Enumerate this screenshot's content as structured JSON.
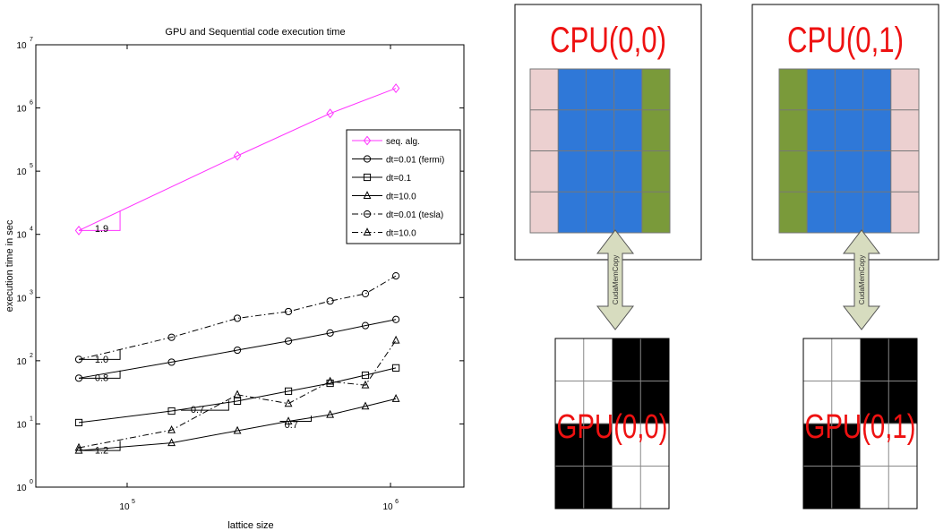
{
  "chart_data": {
    "type": "line",
    "title": "GPU and Sequential code execution time",
    "xlabel": "lattice size",
    "ylabel": "execution time in sec",
    "x_scale": "log",
    "y_scale": "log",
    "xlim": [
      45000,
      1900000
    ],
    "ylim": [
      1,
      10000000
    ],
    "x_ticks": [
      {
        "value": 100000,
        "base": "10",
        "exp": "5"
      },
      {
        "value": 1000000,
        "base": "10",
        "exp": "6"
      }
    ],
    "y_ticks": [
      {
        "value": 1,
        "base": "10",
        "exp": "0"
      },
      {
        "value": 10,
        "base": "10",
        "exp": "1"
      },
      {
        "value": 100,
        "base": "10",
        "exp": "2"
      },
      {
        "value": 1000,
        "base": "10",
        "exp": "3"
      },
      {
        "value": 10000,
        "base": "10",
        "exp": "4"
      },
      {
        "value": 100000,
        "base": "10",
        "exp": "5"
      },
      {
        "value": 1000000,
        "base": "10",
        "exp": "6"
      },
      {
        "value": 10000000,
        "base": "10",
        "exp": "7"
      }
    ],
    "grid": false,
    "legend_position": "right",
    "series": [
      {
        "name": "seq. alg.",
        "color": "#ff33ff",
        "dash": "solid",
        "marker": "diamond",
        "x": [
          65536,
          262144,
          589824,
          1048576
        ],
        "y": [
          11500,
          175000,
          820000,
          2050000
        ]
      },
      {
        "name": "dt=0.01 (fermi)",
        "color": "#000000",
        "dash": "solid",
        "marker": "circle",
        "x": [
          65536,
          147456,
          262144,
          409600,
          589824,
          802816,
          1048576
        ],
        "y": [
          53,
          95,
          147,
          205,
          275,
          360,
          450
        ]
      },
      {
        "name": "dt=0.1",
        "color": "#000000",
        "dash": "solid",
        "marker": "square",
        "x": [
          65536,
          147456,
          262144,
          409600,
          589824,
          802816,
          1048576
        ],
        "y": [
          10.5,
          16,
          23,
          33,
          44,
          59,
          77
        ]
      },
      {
        "name": "dt=10.0",
        "color": "#000000",
        "dash": "solid",
        "marker": "triangle",
        "x": [
          65536,
          147456,
          262144,
          409600,
          589824,
          802816,
          1048576
        ],
        "y": [
          3.8,
          5,
          7.8,
          11,
          14,
          19,
          25
        ]
      },
      {
        "name": "dt=0.01 (tesla)",
        "color": "#000000",
        "dash": "dashdot",
        "marker": "circle",
        "x": [
          65536,
          147456,
          262144,
          409600,
          589824,
          802816,
          1048576
        ],
        "y": [
          105,
          235,
          470,
          600,
          880,
          1150,
          2200
        ]
      },
      {
        "name": "dt=10.0",
        "color": "#000000",
        "dash": "dashdot",
        "marker": "triangle",
        "x": [
          65536,
          147456,
          262144,
          409600,
          589824,
          802816,
          1048576
        ],
        "y": [
          4.2,
          8,
          29,
          21,
          47,
          41,
          210
        ]
      }
    ],
    "slope_annotations": [
      {
        "label": "1.9",
        "x1": 65536,
        "x2": 94000,
        "y1": 11500,
        "y2": 23700,
        "label_x": 80000,
        "label_y": 11000
      },
      {
        "label": "1.0",
        "x1": 65536,
        "x2": 94000,
        "y1": 105,
        "y2": 150,
        "label_x": 80000,
        "label_y": 93
      },
      {
        "label": "0.8",
        "x1": 65536,
        "x2": 94000,
        "y1": 53,
        "y2": 70,
        "label_x": 80000,
        "label_y": 48
      },
      {
        "label": "0.7",
        "x1": 160000,
        "x2": 243000,
        "y1": 16.5,
        "y2": 23.5,
        "label_x": 185000,
        "label_y": 15
      },
      {
        "label": "0.7",
        "x1": 380000,
        "x2": 500000,
        "y1": 11,
        "y2": 13.5,
        "label_x": 420000,
        "label_y": 8.6
      },
      {
        "label": "1.2",
        "x1": 65536,
        "x2": 94000,
        "y1": 3.8,
        "y2": 5.4,
        "label_x": 80000,
        "label_y": 3.4
      }
    ]
  },
  "diagram": {
    "cpu_blocks": [
      {
        "label": "CPU(0,0)",
        "halo_left_color": "#ecd0d0",
        "halo_right_color": "#7a9a3a"
      },
      {
        "label": "CPU(0,1)",
        "halo_left_color": "#7a9a3a",
        "halo_right_color": "#ecd0d0"
      }
    ],
    "arrow_label": "CudaMemCopy",
    "gpu_blocks": [
      {
        "label": "GPU(0,0)",
        "cells": [
          [
            0,
            0,
            1,
            1
          ],
          [
            0,
            0,
            1,
            1
          ],
          [
            1,
            1,
            0,
            0
          ],
          [
            1,
            1,
            0,
            0
          ]
        ]
      },
      {
        "label": "GPU(0,1)",
        "cells": [
          [
            0,
            0,
            1,
            1
          ],
          [
            0,
            0,
            1,
            1
          ],
          [
            1,
            1,
            0,
            0
          ],
          [
            1,
            1,
            0,
            0
          ]
        ]
      }
    ],
    "colors": {
      "label_red": "#ee1111",
      "interior_blue": "#2f78d8",
      "arrow_fill": "#d7dcbf",
      "cell_dark": "#000000",
      "cell_light": "#ffffff"
    }
  }
}
